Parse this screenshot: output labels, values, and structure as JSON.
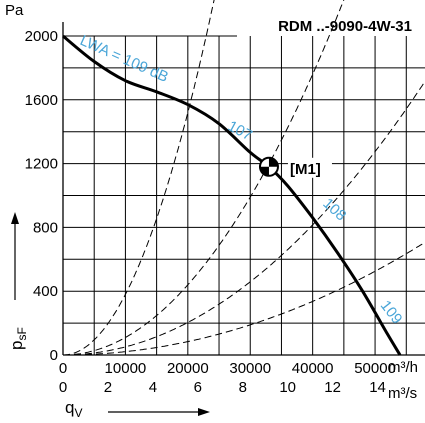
{
  "chart_data": {
    "type": "line",
    "title": "RDM ..-9090-4W-31",
    "y_axis": {
      "unit": "Pa",
      "symbol": "p",
      "symbol_sub": "sF",
      "range": [
        0,
        2000
      ],
      "ticks": [
        0,
        400,
        800,
        1200,
        1600,
        2000
      ]
    },
    "x_axis_primary": {
      "unit": "m³/h",
      "range": [
        0,
        58000
      ],
      "ticks": [
        0,
        10000,
        20000,
        30000,
        40000,
        50000
      ]
    },
    "x_axis_secondary": {
      "unit": "m³/s",
      "symbol": "q",
      "symbol_sub": "V",
      "ticks": [
        0,
        2,
        4,
        6,
        8,
        10,
        12,
        14
      ]
    },
    "fan_curve": {
      "x": [
        0,
        5000,
        10000,
        15000,
        20000,
        25000,
        30000,
        33000,
        36000,
        40000,
        44000,
        48000,
        52000,
        54000
      ],
      "y": [
        2000,
        1840,
        1720,
        1650,
        1570,
        1450,
        1270,
        1180,
        1060,
        860,
        640,
        400,
        130,
        0
      ]
    },
    "system_curves": [
      {
        "k": 3.8e-06
      },
      {
        "k": 1.1e-06
      },
      {
        "k": 5.1e-07
      },
      {
        "k": 2.1e-07
      }
    ],
    "operating_point": {
      "label": "[M1]",
      "x": 33000,
      "y": 1180
    },
    "sound_labels": [
      {
        "text": "LWA = 109 dB",
        "x": 9500,
        "y": 1830
      },
      {
        "text": "107",
        "x": 28000,
        "y": 1380
      },
      {
        "text": "108",
        "x": 43000,
        "y": 890
      },
      {
        "text": "109",
        "x": 52000,
        "y": 250
      }
    ]
  }
}
